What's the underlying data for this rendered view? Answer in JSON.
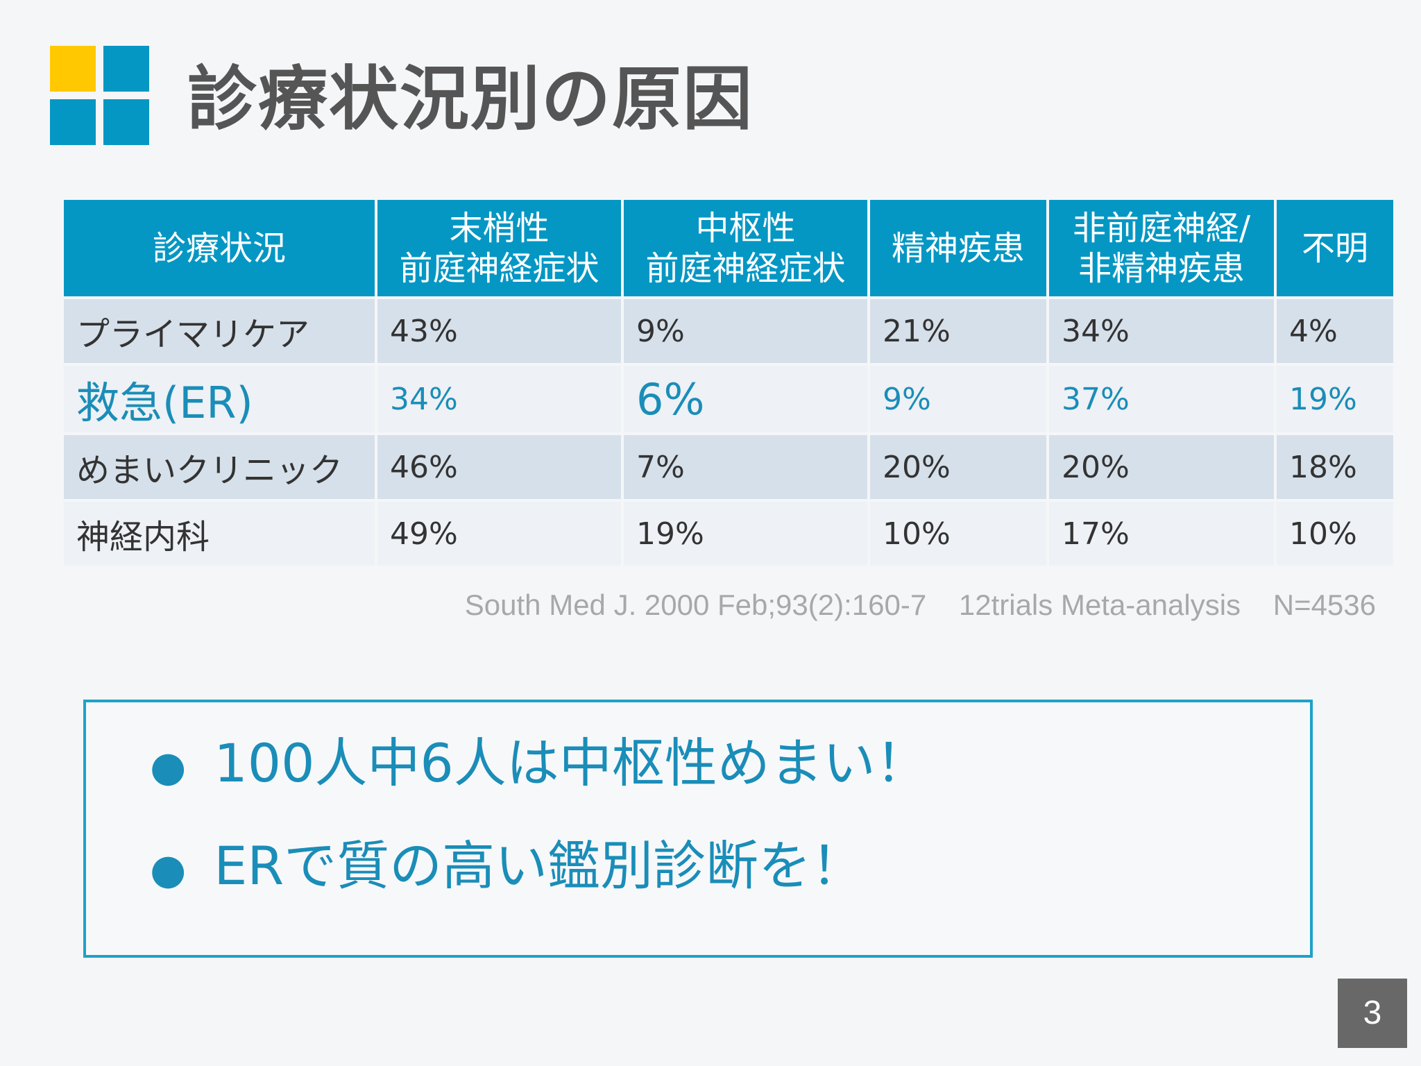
{
  "title": "診療状況別の原因",
  "colors": {
    "accent_blue": "#0597c4",
    "logo_yellow": "#ffc800",
    "logo_blue": "#0597c4",
    "highlight_text": "#1a8db8",
    "page_badge": "#686868"
  },
  "table": {
    "headers": [
      [
        "診療状況"
      ],
      [
        "末梢性",
        "前庭神経症状"
      ],
      [
        "中枢性",
        "前庭神経症状"
      ],
      [
        "精神疾患"
      ],
      [
        "非前庭神経/",
        "非精神疾患"
      ],
      [
        "不明"
      ]
    ],
    "rows": [
      {
        "label": "プライマリケア",
        "values": [
          "43%",
          "9%",
          "21%",
          "34%",
          "4%"
        ]
      },
      {
        "label": "救急(ER)",
        "values": [
          "34%",
          "6%",
          "9%",
          "37%",
          "19%"
        ]
      },
      {
        "label": "めまいクリニック",
        "values": [
          "46%",
          "7%",
          "20%",
          "20%",
          "18%"
        ]
      },
      {
        "label": "神経内科",
        "values": [
          "49%",
          "19%",
          "10%",
          "17%",
          "10%"
        ]
      }
    ]
  },
  "source": "South Med J. 2000 Feb;93(2):160-7    12trials Meta-analysis    N=4536",
  "bullets": [
    "100人中6人は中枢性めまい！",
    "ERで質の高い鑑別診断を！"
  ],
  "page_number": "3"
}
